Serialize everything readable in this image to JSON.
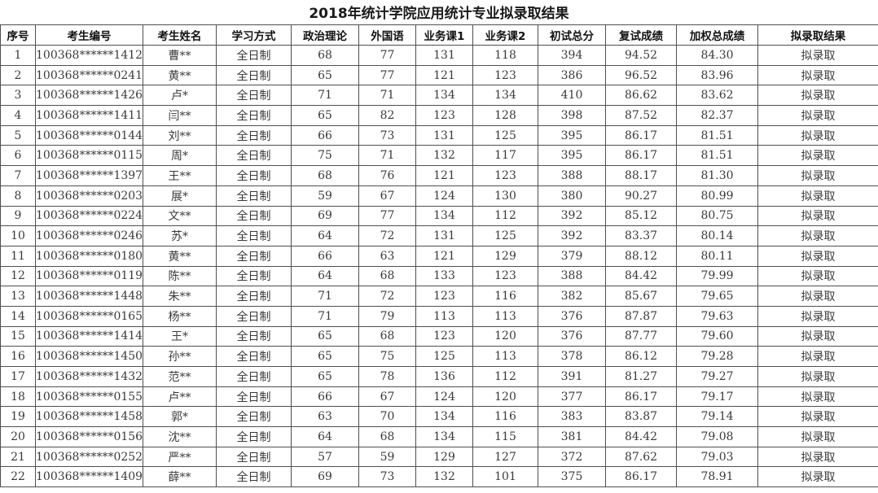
{
  "title": "2018年统计学院应用统计专业拟录取结果",
  "table": {
    "column_keys": [
      "index",
      "candidate_id",
      "candidate_name",
      "study_mode",
      "political_theory",
      "foreign_language",
      "course1",
      "course2",
      "initial_total",
      "retest_score",
      "weighted_total",
      "admission_result"
    ],
    "headers": [
      "序号",
      "考生编号",
      "考生姓名",
      "学习方式",
      "政治理论",
      "外国语",
      "业务课1",
      "业务课2",
      "初试总分",
      "复试成绩",
      "加权总成绩",
      "拟录取结果"
    ],
    "rows": [
      [
        "1",
        "100368******1412",
        "曹**",
        "全日制",
        "68",
        "77",
        "131",
        "118",
        "394",
        "94.52",
        "84.30",
        "拟录取"
      ],
      [
        "2",
        "100368******0241",
        "黄**",
        "全日制",
        "65",
        "77",
        "121",
        "123",
        "386",
        "96.52",
        "83.96",
        "拟录取"
      ],
      [
        "3",
        "100368******1426",
        "卢*",
        "全日制",
        "71",
        "71",
        "134",
        "134",
        "410",
        "86.62",
        "83.62",
        "拟录取"
      ],
      [
        "4",
        "100368******1411",
        "闫**",
        "全日制",
        "65",
        "82",
        "123",
        "128",
        "398",
        "87.52",
        "82.37",
        "拟录取"
      ],
      [
        "5",
        "100368******0144",
        "刘**",
        "全日制",
        "66",
        "73",
        "131",
        "125",
        "395",
        "86.17",
        "81.51",
        "拟录取"
      ],
      [
        "6",
        "100368******0115",
        "周*",
        "全日制",
        "75",
        "71",
        "132",
        "117",
        "395",
        "86.17",
        "81.51",
        "拟录取"
      ],
      [
        "7",
        "100368******1397",
        "王**",
        "全日制",
        "68",
        "76",
        "121",
        "123",
        "388",
        "88.17",
        "81.30",
        "拟录取"
      ],
      [
        "8",
        "100368******0203",
        "展*",
        "全日制",
        "59",
        "67",
        "124",
        "130",
        "380",
        "90.27",
        "80.99",
        "拟录取"
      ],
      [
        "9",
        "100368******0224",
        "文**",
        "全日制",
        "69",
        "77",
        "134",
        "112",
        "392",
        "85.12",
        "80.75",
        "拟录取"
      ],
      [
        "10",
        "100368******0246",
        "苏*",
        "全日制",
        "64",
        "72",
        "131",
        "125",
        "392",
        "83.37",
        "80.14",
        "拟录取"
      ],
      [
        "11",
        "100368******0180",
        "黄**",
        "全日制",
        "66",
        "63",
        "121",
        "129",
        "379",
        "88.12",
        "80.11",
        "拟录取"
      ],
      [
        "12",
        "100368******0119",
        "陈**",
        "全日制",
        "64",
        "68",
        "133",
        "123",
        "388",
        "84.42",
        "79.99",
        "拟录取"
      ],
      [
        "13",
        "100368******1448",
        "朱**",
        "全日制",
        "71",
        "72",
        "123",
        "116",
        "382",
        "85.67",
        "79.65",
        "拟录取"
      ],
      [
        "14",
        "100368******0165",
        "杨**",
        "全日制",
        "71",
        "79",
        "113",
        "113",
        "376",
        "87.87",
        "79.63",
        "拟录取"
      ],
      [
        "15",
        "100368******1414",
        "王*",
        "全日制",
        "65",
        "68",
        "123",
        "120",
        "376",
        "87.77",
        "79.60",
        "拟录取"
      ],
      [
        "16",
        "100368******1450",
        "孙**",
        "全日制",
        "65",
        "75",
        "125",
        "113",
        "378",
        "86.12",
        "79.28",
        "拟录取"
      ],
      [
        "17",
        "100368******1432",
        "范**",
        "全日制",
        "65",
        "78",
        "136",
        "112",
        "391",
        "81.27",
        "79.27",
        "拟录取"
      ],
      [
        "18",
        "100368******0155",
        "卢**",
        "全日制",
        "66",
        "67",
        "124",
        "120",
        "377",
        "86.17",
        "79.17",
        "拟录取"
      ],
      [
        "19",
        "100368******1458",
        "郭*",
        "全日制",
        "63",
        "70",
        "134",
        "116",
        "383",
        "83.87",
        "79.14",
        "拟录取"
      ],
      [
        "20",
        "100368******0156",
        "沈**",
        "全日制",
        "64",
        "68",
        "134",
        "115",
        "381",
        "84.42",
        "79.08",
        "拟录取"
      ],
      [
        "21",
        "100368******0252",
        "严**",
        "全日制",
        "57",
        "59",
        "129",
        "127",
        "372",
        "87.62",
        "79.03",
        "拟录取"
      ],
      [
        "22",
        "100368******1409",
        "薛**",
        "全日制",
        "69",
        "73",
        "132",
        "101",
        "375",
        "86.17",
        "78.91",
        "拟录取"
      ]
    ]
  },
  "colors": {
    "background": "#ffffff",
    "border": "#4f4f4f",
    "body_text": "#3a3a3a",
    "header_text": "#111111"
  }
}
